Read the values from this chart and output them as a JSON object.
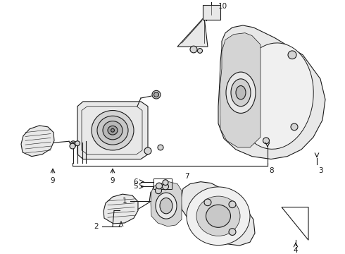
{
  "bg_color": "#ffffff",
  "lc": "#1a1a1a",
  "lw": 0.8,
  "figsize": [
    4.9,
    3.6
  ],
  "dpi": 100
}
